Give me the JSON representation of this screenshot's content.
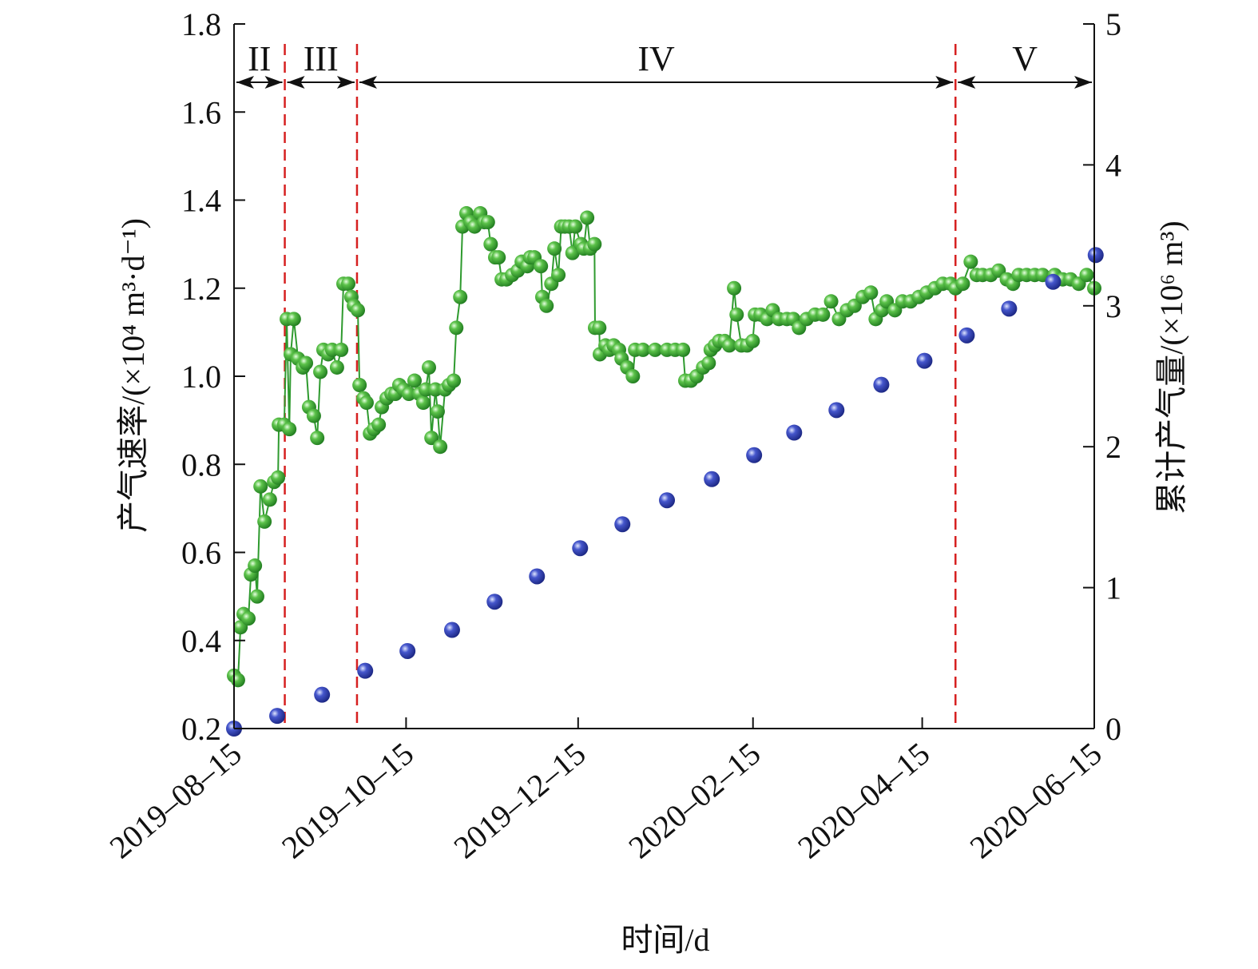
{
  "chart_data": {
    "type": "scatter",
    "title": "",
    "xlabel": "时间/d",
    "ylabel_left": "产气速率/(×10⁴ m³·d⁻¹)",
    "ylabel_right": "累计产气量/(×10⁶ m³)",
    "x_unit": "days since 2019-08-15",
    "xlim": [
      0,
      305
    ],
    "x_ticks": [
      {
        "day": 0,
        "label": "2019–08–15"
      },
      {
        "day": 61,
        "label": "2019–10–15"
      },
      {
        "day": 122,
        "label": "2019–12–15"
      },
      {
        "day": 184,
        "label": "2020–02–15"
      },
      {
        "day": 244,
        "label": "2020–04–15"
      },
      {
        "day": 305,
        "label": "2020–06–15"
      }
    ],
    "ylim_left": [
      0.2,
      1.8
    ],
    "yticks_left": [
      "0.2",
      "0.4",
      "0.6",
      "0.8",
      "1.0",
      "1.2",
      "1.4",
      "1.6",
      "1.8"
    ],
    "ylim_right": [
      0,
      5
    ],
    "yticks_right": [
      "0",
      "1",
      "2",
      "3",
      "4",
      "5"
    ],
    "phases": [
      {
        "label": "II",
        "start": 0,
        "end": 18
      },
      {
        "label": "III",
        "start": 18,
        "end": 43.6
      },
      {
        "label": "IV",
        "start": 43.6,
        "end": 255.8
      },
      {
        "label": "V",
        "start": 255.8,
        "end": 305
      }
    ],
    "phase_boundaries": [
      18,
      43.6,
      255.8
    ],
    "colors": {
      "rate": "#2e9a2e",
      "cumulative": "#2a3aa8",
      "boundary": "#d62020"
    },
    "series": [
      {
        "name": "产气速率",
        "axis": "left",
        "style": "line+marker",
        "points": [
          [
            0,
            0.32
          ],
          [
            1.4,
            0.31
          ],
          [
            2.3,
            0.43
          ],
          [
            3.4,
            0.46
          ],
          [
            5.1,
            0.45
          ],
          [
            6,
            0.55
          ],
          [
            7.4,
            0.57
          ],
          [
            8.2,
            0.5
          ],
          [
            9.4,
            0.75
          ],
          [
            10.8,
            0.67
          ],
          [
            12.7,
            0.72
          ],
          [
            14.2,
            0.76
          ],
          [
            15.6,
            0.77
          ],
          [
            15.9,
            0.89
          ],
          [
            17.8,
            0.89
          ],
          [
            18.7,
            1.13
          ],
          [
            19.6,
            0.88
          ],
          [
            20.1,
            1.05
          ],
          [
            21.2,
            1.13
          ],
          [
            22.7,
            1.04
          ],
          [
            24.4,
            1.02
          ],
          [
            25.5,
            1.03
          ],
          [
            26.6,
            0.93
          ],
          [
            28.3,
            0.91
          ],
          [
            29.5,
            0.86
          ],
          [
            30.6,
            1.01
          ],
          [
            31.7,
            1.06
          ],
          [
            33.4,
            1.05
          ],
          [
            34.8,
            1.06
          ],
          [
            36.5,
            1.02
          ],
          [
            38,
            1.06
          ],
          [
            38.8,
            1.21
          ],
          [
            40.5,
            1.21
          ],
          [
            41.6,
            1.18
          ],
          [
            42.5,
            1.16
          ],
          [
            43.9,
            1.15
          ],
          [
            44.5,
            0.98
          ],
          [
            45.9,
            0.95
          ],
          [
            47,
            0.94
          ],
          [
            48.2,
            0.87
          ],
          [
            49.6,
            0.88
          ],
          [
            51.3,
            0.89
          ],
          [
            52.4,
            0.93
          ],
          [
            54.1,
            0.95
          ],
          [
            55.8,
            0.96
          ],
          [
            57.2,
            0.96
          ],
          [
            58.6,
            0.98
          ],
          [
            60.1,
            0.97
          ],
          [
            62,
            0.96
          ],
          [
            64,
            0.99
          ],
          [
            65.7,
            0.96
          ],
          [
            67.1,
            0.94
          ],
          [
            68,
            0.97
          ],
          [
            69.1,
            1.02
          ],
          [
            70,
            0.86
          ],
          [
            71.4,
            0.97
          ],
          [
            72.2,
            0.92
          ],
          [
            73.1,
            0.84
          ],
          [
            74.8,
            0.97
          ],
          [
            76.2,
            0.98
          ],
          [
            77.9,
            0.99
          ],
          [
            78.8,
            1.11
          ],
          [
            80.2,
            1.18
          ],
          [
            81,
            1.34
          ],
          [
            82.4,
            1.37
          ],
          [
            83.9,
            1.35
          ],
          [
            85.3,
            1.34
          ],
          [
            87.3,
            1.37
          ],
          [
            88.7,
            1.35
          ],
          [
            90,
            1.35
          ],
          [
            91,
            1.3
          ],
          [
            92.6,
            1.27
          ],
          [
            93.8,
            1.27
          ],
          [
            94.9,
            1.22
          ],
          [
            96.6,
            1.22
          ],
          [
            98.6,
            1.23
          ],
          [
            100.6,
            1.24
          ],
          [
            102,
            1.26
          ],
          [
            104,
            1.25
          ],
          [
            105,
            1.27
          ],
          [
            106.5,
            1.27
          ],
          [
            108.8,
            1.25
          ],
          [
            109.3,
            1.18
          ],
          [
            110.8,
            1.16
          ],
          [
            112.5,
            1.21
          ],
          [
            113.6,
            1.29
          ],
          [
            115,
            1.23
          ],
          [
            116,
            1.34
          ],
          [
            117.3,
            1.34
          ],
          [
            118.8,
            1.34
          ],
          [
            120,
            1.28
          ],
          [
            121,
            1.34
          ],
          [
            123,
            1.3
          ],
          [
            124,
            1.29
          ],
          [
            125.2,
            1.36
          ],
          [
            126.3,
            1.29
          ],
          [
            127.8,
            1.3
          ],
          [
            128,
            1.11
          ],
          [
            129.5,
            1.11
          ],
          [
            129.7,
            1.05
          ],
          [
            131.7,
            1.07
          ],
          [
            133.1,
            1.06
          ],
          [
            134.6,
            1.07
          ],
          [
            136.5,
            1.06
          ],
          [
            137.4,
            1.04
          ],
          [
            139.4,
            1.02
          ],
          [
            141.4,
            1.0
          ],
          [
            142.2,
            1.06
          ],
          [
            145,
            1.06
          ],
          [
            149.3,
            1.06
          ],
          [
            153.5,
            1.06
          ],
          [
            156.4,
            1.06
          ],
          [
            159.2,
            1.06
          ],
          [
            160,
            0.99
          ],
          [
            162,
            0.99
          ],
          [
            164,
            1.0
          ],
          [
            166.3,
            1.02
          ],
          [
            168.3,
            1.03
          ],
          [
            169,
            1.06
          ],
          [
            170.5,
            1.07
          ],
          [
            172,
            1.08
          ],
          [
            174,
            1.08
          ],
          [
            175.6,
            1.07
          ],
          [
            177.3,
            1.2
          ],
          [
            178.2,
            1.14
          ],
          [
            179.9,
            1.07
          ],
          [
            181.9,
            1.07
          ],
          [
            183.9,
            1.08
          ],
          [
            184.7,
            1.14
          ],
          [
            186.7,
            1.14
          ],
          [
            189,
            1.13
          ],
          [
            191,
            1.15
          ],
          [
            193.2,
            1.13
          ],
          [
            196,
            1.13
          ],
          [
            198.3,
            1.13
          ],
          [
            200.3,
            1.11
          ],
          [
            203,
            1.13
          ],
          [
            206,
            1.14
          ],
          [
            208.8,
            1.14
          ],
          [
            211.7,
            1.17
          ],
          [
            214.5,
            1.13
          ],
          [
            217.3,
            1.15
          ],
          [
            220,
            1.16
          ],
          [
            222.9,
            1.18
          ],
          [
            225.8,
            1.19
          ],
          [
            227.5,
            1.13
          ],
          [
            229.7,
            1.15
          ],
          [
            231.4,
            1.17
          ],
          [
            234.3,
            1.15
          ],
          [
            237,
            1.17
          ],
          [
            239.9,
            1.17
          ],
          [
            242.8,
            1.18
          ],
          [
            245.6,
            1.19
          ],
          [
            248.5,
            1.2
          ],
          [
            251.3,
            1.21
          ],
          [
            254.1,
            1.21
          ],
          [
            255.8,
            1.2
          ],
          [
            258.4,
            1.21
          ],
          [
            261.2,
            1.26
          ],
          [
            263.3,
            1.23
          ],
          [
            265.4,
            1.23
          ],
          [
            268.3,
            1.23
          ],
          [
            271.1,
            1.24
          ],
          [
            274,
            1.22
          ],
          [
            276.2,
            1.21
          ],
          [
            278.2,
            1.23
          ],
          [
            281,
            1.23
          ],
          [
            283.9,
            1.23
          ],
          [
            286.7,
            1.23
          ],
          [
            291,
            1.23
          ],
          [
            293.8,
            1.22
          ],
          [
            296.6,
            1.22
          ],
          [
            299.5,
            1.21
          ],
          [
            302.3,
            1.23
          ],
          [
            305,
            1.2
          ]
        ]
      },
      {
        "name": "累计产气量",
        "axis": "right",
        "style": "marker",
        "points": [
          [
            0,
            0
          ],
          [
            15.3,
            0.09
          ],
          [
            31.2,
            0.24
          ],
          [
            46.5,
            0.41
          ],
          [
            61.5,
            0.55
          ],
          [
            77.3,
            0.7
          ],
          [
            92.4,
            0.9
          ],
          [
            107.4,
            1.08
          ],
          [
            122.7,
            1.28
          ],
          [
            137.7,
            1.45
          ],
          [
            153.5,
            1.62
          ],
          [
            169.4,
            1.77
          ],
          [
            184.4,
            1.94
          ],
          [
            198.6,
            2.1
          ],
          [
            213.6,
            2.26
          ],
          [
            229.5,
            2.44
          ],
          [
            244.8,
            2.61
          ],
          [
            259.8,
            2.79
          ],
          [
            274.8,
            2.98
          ],
          [
            290.4,
            3.17
          ],
          [
            305.5,
            3.36
          ]
        ]
      }
    ]
  }
}
